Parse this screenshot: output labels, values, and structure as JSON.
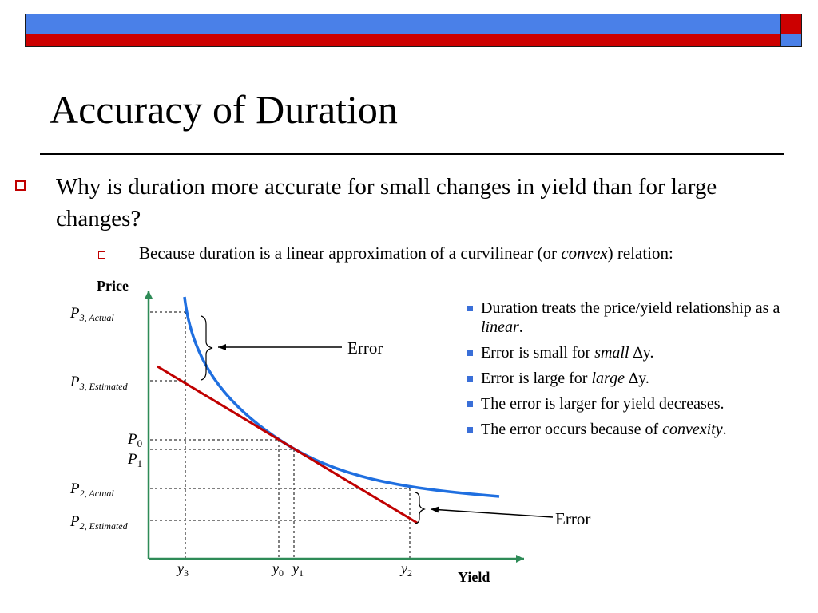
{
  "colors": {
    "band_blue": "#4a80e8",
    "band_red": "#cc0000",
    "bullet_red": "#c00000",
    "curve_blue": "#1f6fe0",
    "tangent_red": "#c00000",
    "axis_green": "#2e8b57"
  },
  "slide": {
    "title": "Accuracy of Duration",
    "bullet1": "Why is duration more accurate for small changes in yield than for large changes?",
    "bullet2": {
      "before": "Because duration is a linear approximation of a curvilinear (or ",
      "emph": "convex",
      "after": ") relation:"
    }
  },
  "diagram": {
    "axis_y_label": "Price",
    "axis_x_label": "Yield",
    "price_labels": [
      {
        "main": "P",
        "sub": "3, Actual"
      },
      {
        "main": "P",
        "sub": "3, Estimated"
      },
      {
        "main": "P",
        "sub": "0"
      },
      {
        "main": "P",
        "sub": "1"
      },
      {
        "main": "P",
        "sub": "2, Actual"
      },
      {
        "main": "P",
        "sub": "2, Estimated"
      }
    ],
    "yield_labels": [
      {
        "main": "y",
        "sub": "3"
      },
      {
        "main": "y",
        "sub": "0"
      },
      {
        "main": "y",
        "sub": "1"
      },
      {
        "main": "y",
        "sub": "2"
      }
    ],
    "error_labels": [
      "Error",
      "Error"
    ]
  },
  "notes": [
    {
      "before": "Duration treats the price/yield relationship as a ",
      "emph": "linear",
      "after": "."
    },
    {
      "before": "Error is small for ",
      "emph": "small",
      "after": " ∆y."
    },
    {
      "before": "Error is large for ",
      "emph": "large",
      "after": " ∆y."
    },
    {
      "before": "The error is larger for yield decreases.",
      "emph": "",
      "after": ""
    },
    {
      "before": "The error occurs because of ",
      "emph": "convexity",
      "after": "."
    }
  ]
}
